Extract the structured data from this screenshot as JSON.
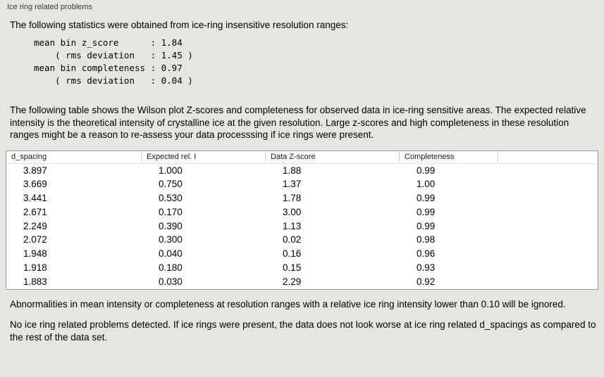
{
  "panel": {
    "title": "Ice ring related problems"
  },
  "intro": "The following statistics were obtained from ice-ring insensitive resolution ranges:",
  "stats": {
    "text": "mean bin z_score      : 1.84\n    ( rms deviation   : 1.45 )\nmean bin completeness : 0.97\n    ( rms deviation   : 0.04 )"
  },
  "description": "The following table shows the Wilson plot Z-scores and completeness for observed data in ice-ring sensitive areas. The expected relative intensity is the theoretical intensity of crystalline ice at the given resolution. Large z-scores and high completeness in these resolution ranges might be a reason to re-assess your data processsing if ice rings were present.",
  "table": {
    "headers": [
      "d_spacing",
      "Expected rel. I",
      "Data Z-score",
      "Completeness"
    ],
    "rows": [
      [
        "3.897",
        "1.000",
        "1.88",
        "0.99"
      ],
      [
        "3.669",
        "0.750",
        "1.37",
        "1.00"
      ],
      [
        "3.441",
        "0.530",
        "1.78",
        "0.99"
      ],
      [
        "2.671",
        "0.170",
        "3.00",
        "0.99"
      ],
      [
        "2.249",
        "0.390",
        "1.13",
        "0.99"
      ],
      [
        "2.072",
        "0.300",
        "0.02",
        "0.98"
      ],
      [
        "1.948",
        "0.040",
        "0.16",
        "0.96"
      ],
      [
        "1.918",
        "0.180",
        "0.15",
        "0.93"
      ],
      [
        "1.883",
        "0.030",
        "2.29",
        "0.92"
      ]
    ]
  },
  "note_ignore": "Abnormalities in mean intensity or completeness at resolution ranges with a relative ice ring intensity lower than 0.10 will be ignored.",
  "conclusion": "No ice ring related problems detected. If ice rings were present, the data does not look worse at ice ring related d_spacings as compared to the rest of the data set."
}
